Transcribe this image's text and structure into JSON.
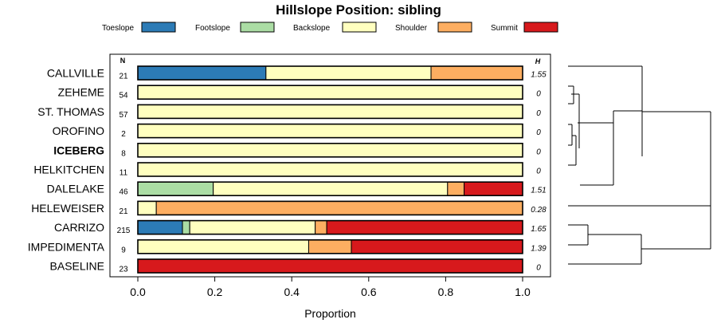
{
  "chart_data": {
    "type": "bar",
    "stacked": true,
    "orientation": "horizontal",
    "title": "Hillslope Position: sibling",
    "xlabel": "Proportion",
    "xlim": [
      0,
      1
    ],
    "xticks": [
      "0.0",
      "0.2",
      "0.4",
      "0.6",
      "0.8",
      "1.0"
    ],
    "n_header": "N",
    "h_header": "H",
    "legend_position": "top",
    "highlighted_category": "ICEBERG",
    "categories": [
      "CALLVILLE",
      "ZEHEME",
      "ST. THOMAS",
      "OROFINO",
      "ICEBERG",
      "HELKITCHEN",
      "DALELAKE",
      "HELEWEISER",
      "CARRIZO",
      "IMPEDIMENTA",
      "BASELINE"
    ],
    "n": [
      "21",
      "54",
      "57",
      "2",
      "8",
      "11",
      "46",
      "21",
      "215",
      "9",
      "23"
    ],
    "h": [
      "1.55",
      "0",
      "0",
      "0",
      "0",
      "0",
      "1.51",
      "0.28",
      "1.65",
      "1.39",
      "0"
    ],
    "series": [
      {
        "name": "Toeslope",
        "color": "#2c7bb6",
        "values": [
          0.333,
          0,
          0,
          0,
          0,
          0,
          0,
          0,
          0.116,
          0,
          0
        ]
      },
      {
        "name": "Footslope",
        "color": "#abdda4",
        "values": [
          0,
          0,
          0,
          0,
          0,
          0,
          0.196,
          0,
          0.019,
          0,
          0
        ]
      },
      {
        "name": "Backslope",
        "color": "#ffffbf",
        "values": [
          0.429,
          1,
          1,
          1,
          1,
          1,
          0.609,
          0.048,
          0.326,
          0.444,
          0
        ]
      },
      {
        "name": "Shoulder",
        "color": "#fdae61",
        "values": [
          0.238,
          0,
          0,
          0,
          0,
          0,
          0.043,
          0.952,
          0.03,
          0.111,
          0
        ]
      },
      {
        "name": "Summit",
        "color": "#d7191c",
        "values": [
          0,
          0,
          0,
          0,
          0,
          0,
          0.152,
          0,
          0.509,
          0.445,
          1
        ]
      }
    ]
  }
}
